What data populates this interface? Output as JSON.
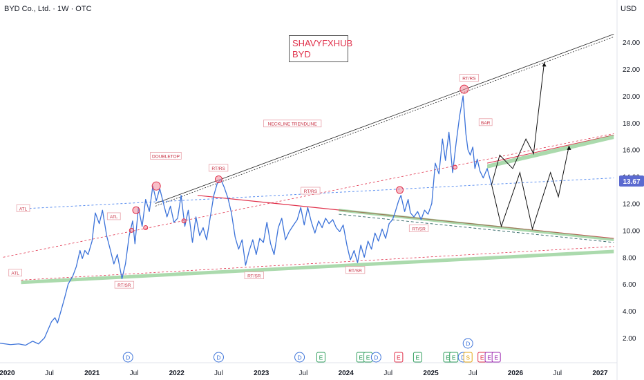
{
  "header": {
    "symbol": "BYD Co., Ltd. · 1W · OTC",
    "currency": "USD"
  },
  "watermark": {
    "line1": "SHAVYFXHUB",
    "line2": "BYD"
  },
  "colors": {
    "price_line": "#3b72d9",
    "price_badge": "#5b6ad0",
    "red_line": "#e0304a",
    "green_band": "#66bb6a",
    "blue_line": "#5b8ff0",
    "black_line": "#222222",
    "event_dividend": "#3b72d9",
    "event_earnings_green": "#2e9e5b",
    "event_earnings_red": "#e0304a",
    "event_split": "#e3a512",
    "event_mixed": "#9c27b0"
  },
  "chart_data": {
    "type": "line",
    "title": "BYD Co., Ltd. · 1W · OTC",
    "y_currency": "USD",
    "ylim": [
      1.0,
      25.0
    ],
    "x_range": [
      "2019-12-01",
      "2027-03-15"
    ],
    "last_price": "13.67",
    "y_ticks": [
      "24.00",
      "22.00",
      "20.00",
      "18.00",
      "16.00",
      "14.00",
      "12.00",
      "10.00",
      "8.00",
      "6.00",
      "4.00",
      "2.00"
    ],
    "x_ticks": [
      {
        "label": "2020",
        "date": "2020-01-01"
      },
      {
        "label": "Jul",
        "date": "2020-07-01"
      },
      {
        "label": "2021",
        "date": "2021-01-01"
      },
      {
        "label": "Jul",
        "date": "2021-07-01"
      },
      {
        "label": "2022",
        "date": "2022-01-01"
      },
      {
        "label": "Jul",
        "date": "2022-07-01"
      },
      {
        "label": "2023",
        "date": "2023-01-01"
      },
      {
        "label": "Jul",
        "date": "2023-07-01"
      },
      {
        "label": "2024",
        "date": "2024-01-01"
      },
      {
        "label": "Jul",
        "date": "2024-07-01"
      },
      {
        "label": "2025",
        "date": "2025-01-01"
      },
      {
        "label": "Jul",
        "date": "2025-07-01"
      },
      {
        "label": "2026",
        "date": "2026-01-01"
      },
      {
        "label": "Jul",
        "date": "2026-07-01"
      },
      {
        "label": "2027",
        "date": "2027-01-01"
      }
    ],
    "series": [
      {
        "values": [
          [
            "2019-12-01",
            1.6
          ],
          [
            "2020-01-15",
            1.5
          ],
          [
            "2020-02-20",
            1.55
          ],
          [
            "2020-03-20",
            1.45
          ],
          [
            "2020-04-20",
            1.75
          ],
          [
            "2020-05-15",
            1.55
          ],
          [
            "2020-06-10",
            2.0
          ],
          [
            "2020-06-25",
            2.6
          ],
          [
            "2020-07-10",
            3.2
          ],
          [
            "2020-07-25",
            3.5
          ],
          [
            "2020-08-05",
            3.1
          ],
          [
            "2020-08-20",
            4.0
          ],
          [
            "2020-09-05",
            5.0
          ],
          [
            "2020-09-20",
            6.0
          ],
          [
            "2020-10-10",
            6.6
          ],
          [
            "2020-10-25",
            7.3
          ],
          [
            "2020-11-10",
            8.5
          ],
          [
            "2020-11-20",
            7.9
          ],
          [
            "2020-12-01",
            8.5
          ],
          [
            "2020-12-15",
            8.2
          ],
          [
            "2021-01-01",
            9.2
          ],
          [
            "2021-01-15",
            11.3
          ],
          [
            "2021-02-01",
            10.5
          ],
          [
            "2021-02-15",
            11.5
          ],
          [
            "2021-03-05",
            9.6
          ],
          [
            "2021-03-20",
            8.6
          ],
          [
            "2021-04-05",
            7.5
          ],
          [
            "2021-04-20",
            8.2
          ],
          [
            "2021-05-10",
            6.4
          ],
          [
            "2021-05-25",
            7.5
          ],
          [
            "2021-06-10",
            9.6
          ],
          [
            "2021-06-25",
            10.7
          ],
          [
            "2021-07-05",
            9.0
          ],
          [
            "2021-07-20",
            11.7
          ],
          [
            "2021-08-05",
            10.3
          ],
          [
            "2021-08-20",
            12.3
          ],
          [
            "2021-09-05",
            11.4
          ],
          [
            "2021-09-20",
            13.3
          ],
          [
            "2021-10-05",
            12.2
          ],
          [
            "2021-10-20",
            13.1
          ],
          [
            "2021-11-05",
            12.0
          ],
          [
            "2021-11-20",
            11.0
          ],
          [
            "2021-12-05",
            11.8
          ],
          [
            "2021-12-20",
            10.6
          ],
          [
            "2022-01-05",
            10.9
          ],
          [
            "2022-01-20",
            12.6
          ],
          [
            "2022-02-05",
            10.3
          ],
          [
            "2022-02-20",
            11.5
          ],
          [
            "2022-03-10",
            9.1
          ],
          [
            "2022-03-25",
            11.0
          ],
          [
            "2022-04-10",
            9.6
          ],
          [
            "2022-04-25",
            10.2
          ],
          [
            "2022-05-10",
            9.3
          ],
          [
            "2022-05-25",
            10.9
          ],
          [
            "2022-06-10",
            12.6
          ],
          [
            "2022-06-25",
            13.5
          ],
          [
            "2022-07-10",
            13.8
          ],
          [
            "2022-07-25",
            13.2
          ],
          [
            "2022-08-10",
            12.4
          ],
          [
            "2022-08-25",
            11.3
          ],
          [
            "2022-09-10",
            9.5
          ],
          [
            "2022-09-25",
            8.6
          ],
          [
            "2022-10-10",
            9.3
          ],
          [
            "2022-10-25",
            7.4
          ],
          [
            "2022-11-10",
            8.5
          ],
          [
            "2022-11-25",
            9.3
          ],
          [
            "2022-12-10",
            8.2
          ],
          [
            "2022-12-25",
            9.4
          ],
          [
            "2023-01-10",
            9.1
          ],
          [
            "2023-01-25",
            10.6
          ],
          [
            "2023-02-10",
            9.0
          ],
          [
            "2023-02-25",
            8.2
          ],
          [
            "2023-03-15",
            10.2
          ],
          [
            "2023-03-30",
            10.9
          ],
          [
            "2023-04-15",
            9.3
          ],
          [
            "2023-05-01",
            9.9
          ],
          [
            "2023-05-20",
            10.4
          ],
          [
            "2023-06-05",
            10.8
          ],
          [
            "2023-06-20",
            11.7
          ],
          [
            "2023-07-05",
            10.4
          ],
          [
            "2023-07-20",
            11.7
          ],
          [
            "2023-08-05",
            10.6
          ],
          [
            "2023-08-20",
            9.8
          ],
          [
            "2023-09-05",
            10.7
          ],
          [
            "2023-09-20",
            10.2
          ],
          [
            "2023-10-05",
            10.9
          ],
          [
            "2023-10-20",
            10.5
          ],
          [
            "2023-11-05",
            10.8
          ],
          [
            "2023-11-20",
            10.2
          ],
          [
            "2023-12-05",
            9.9
          ],
          [
            "2023-12-20",
            10.4
          ],
          [
            "2024-01-05",
            8.9
          ],
          [
            "2024-01-20",
            7.8
          ],
          [
            "2024-02-05",
            8.5
          ],
          [
            "2024-02-20",
            7.6
          ],
          [
            "2024-03-05",
            8.9
          ],
          [
            "2024-03-20",
            8.0
          ],
          [
            "2024-04-05",
            9.2
          ],
          [
            "2024-04-20",
            8.6
          ],
          [
            "2024-05-05",
            9.8
          ],
          [
            "2024-05-20",
            9.2
          ],
          [
            "2024-06-05",
            10.1
          ],
          [
            "2024-06-20",
            9.4
          ],
          [
            "2024-07-05",
            10.5
          ],
          [
            "2024-07-20",
            10.8
          ],
          [
            "2024-08-01",
            11.4
          ],
          [
            "2024-08-15",
            12.2
          ],
          [
            "2024-08-25",
            12.6
          ],
          [
            "2024-09-10",
            11.4
          ],
          [
            "2024-09-25",
            12.3
          ],
          [
            "2024-10-05",
            11.3
          ],
          [
            "2024-10-20",
            11.0
          ],
          [
            "2024-11-05",
            11.4
          ],
          [
            "2024-11-20",
            10.8
          ],
          [
            "2024-12-05",
            11.5
          ],
          [
            "2024-12-20",
            11.2
          ],
          [
            "2025-01-05",
            12.0
          ],
          [
            "2025-01-20",
            15.0
          ],
          [
            "2025-02-05",
            14.2
          ],
          [
            "2025-02-20",
            16.8
          ],
          [
            "2025-03-05",
            15.2
          ],
          [
            "2025-03-20",
            17.3
          ],
          [
            "2025-04-05",
            14.3
          ],
          [
            "2025-04-20",
            16.5
          ],
          [
            "2025-05-05",
            18.5
          ],
          [
            "2025-05-20",
            20.0
          ],
          [
            "2025-06-01",
            17.2
          ],
          [
            "2025-06-10",
            16.0
          ],
          [
            "2025-06-20",
            15.6
          ],
          [
            "2025-07-01",
            16.2
          ],
          [
            "2025-07-10",
            14.6
          ],
          [
            "2025-07-20",
            15.3
          ],
          [
            "2025-08-01",
            14.4
          ],
          [
            "2025-08-15",
            13.9
          ],
          [
            "2025-09-01",
            14.6
          ],
          [
            "2025-09-20",
            13.4
          ]
        ]
      },
      {
        "name": "projection",
        "values": [
          [
            "2025-09-20",
            13.4
          ],
          [
            "2025-11-01",
            10.3
          ],
          [
            "2026-01-20",
            14.3
          ],
          [
            "2026-03-15",
            10.1
          ],
          [
            "2026-06-01",
            14.3
          ],
          [
            "2026-07-05",
            12.5
          ],
          [
            "2026-08-20",
            16.3
          ]
        ]
      },
      {
        "name": "projection-upper",
        "values": [
          [
            "2025-09-20",
            13.4
          ],
          [
            "2025-10-25",
            15.6
          ],
          [
            "2025-12-20",
            14.6
          ],
          [
            "2026-02-15",
            16.8
          ],
          [
            "2026-03-20",
            15.7
          ],
          [
            "2026-05-05",
            22.5
          ]
        ]
      }
    ],
    "annotations": [
      {
        "text": "ATL",
        "date": "2020-03-10",
        "price": 11.6
      },
      {
        "text": "ATL",
        "date": "2020-02-05",
        "price": 6.8
      },
      {
        "text": "ATL",
        "date": "2021-04-05",
        "price": 11.0
      },
      {
        "text": "RT/SR",
        "date": "2021-05-20",
        "price": 5.9
      },
      {
        "text": "DOUBLETOP",
        "date": "2021-11-15",
        "price": 15.5
      },
      {
        "text": "RT/RS",
        "date": "2022-06-30",
        "price": 14.6
      },
      {
        "text": "NECKLINE TRENDLINE",
        "date": "2023-05-15",
        "price": 17.9
      },
      {
        "text": "RT/RS",
        "date": "2023-08-01",
        "price": 12.9
      },
      {
        "text": "RT/SR",
        "date": "2022-12-01",
        "price": 6.6
      },
      {
        "text": "RT/SR",
        "date": "2024-02-10",
        "price": 7.0
      },
      {
        "text": "RT/SR",
        "date": "2024-11-10",
        "price": 10.1
      },
      {
        "text": "RT/RS",
        "date": "2025-06-15",
        "price": 21.3
      },
      {
        "text": "BAR",
        "date": "2025-08-25",
        "price": 18.0
      }
    ],
    "events": [
      {
        "label": "D",
        "date": "2021-06-05",
        "kind": "dividend"
      },
      {
        "label": "D",
        "date": "2022-07-01",
        "kind": "dividend"
      },
      {
        "label": "D",
        "date": "2023-06-15",
        "kind": "dividend"
      },
      {
        "label": "E",
        "date": "2023-09-15",
        "kind": "earnings"
      },
      {
        "label": "E",
        "date": "2024-03-05",
        "kind": "earnings"
      },
      {
        "label": "E",
        "date": "2024-04-05",
        "kind": "earnings"
      },
      {
        "label": "D",
        "date": "2024-05-10",
        "kind": "dividend"
      },
      {
        "label": "E",
        "date": "2024-08-15",
        "kind": "earnings-red"
      },
      {
        "label": "E",
        "date": "2024-11-05",
        "kind": "earnings"
      },
      {
        "label": "E",
        "date": "2025-03-15",
        "kind": "earnings"
      },
      {
        "label": "E",
        "date": "2025-04-10",
        "kind": "earnings"
      },
      {
        "label": "D",
        "date": "2025-05-20",
        "kind": "dividend"
      },
      {
        "label": "D",
        "date": "2025-06-10",
        "kind": "dividend"
      },
      {
        "label": "S",
        "date": "2025-06-10",
        "kind": "split"
      },
      {
        "label": "E",
        "date": "2025-08-10",
        "kind": "earnings-red"
      },
      {
        "label": "E",
        "date": "2025-09-10",
        "kind": "mixed"
      },
      {
        "label": "E",
        "date": "2025-10-10",
        "kind": "mixed"
      }
    ],
    "grid": false,
    "legend": "none"
  }
}
